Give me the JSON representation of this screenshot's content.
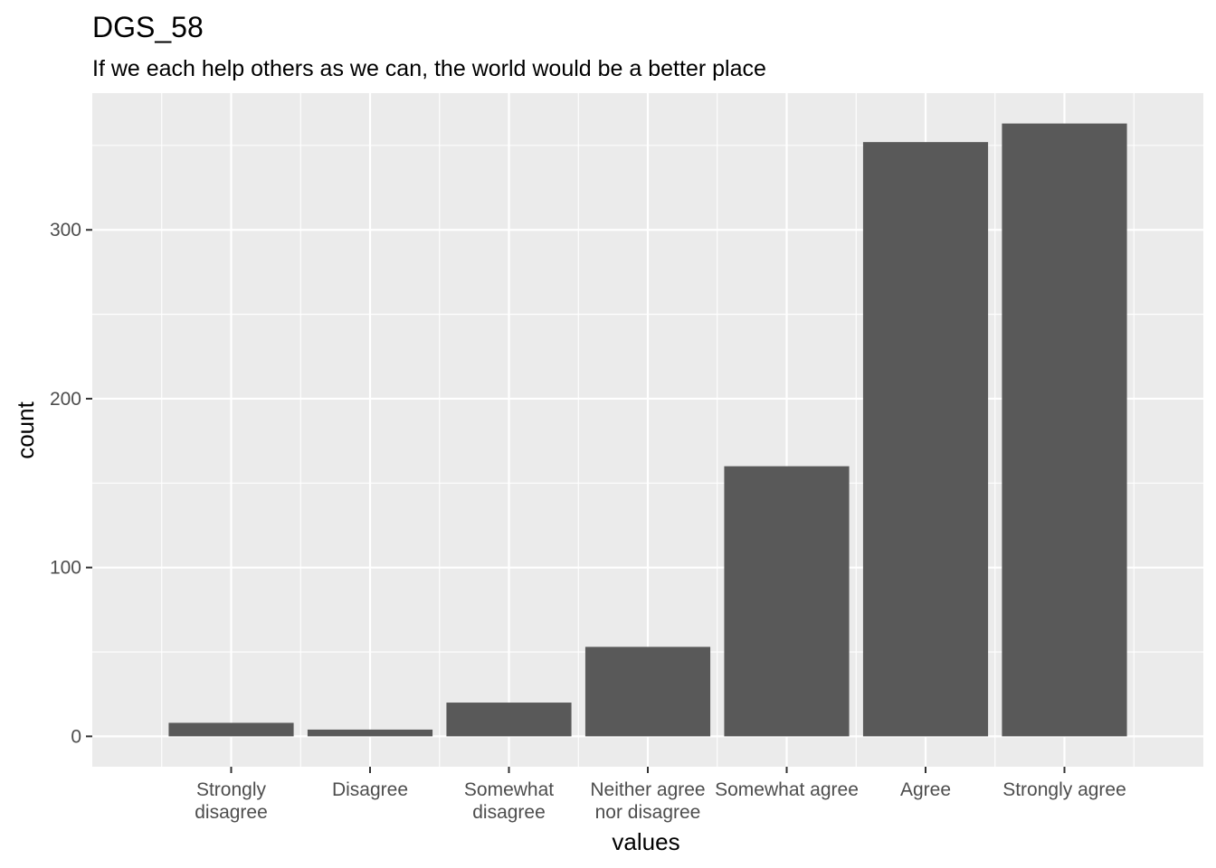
{
  "chart_data": {
    "type": "bar",
    "title": "DGS_58",
    "subtitle": "If we each help others as we can, the world would be a better place",
    "xlabel": "values",
    "ylabel": "count",
    "categories": [
      [
        "Strongly",
        "disagree"
      ],
      [
        "Disagree"
      ],
      [
        "Somewhat",
        "disagree"
      ],
      [
        "Neither agree",
        "nor disagree"
      ],
      [
        "Somewhat agree"
      ],
      [
        "Agree"
      ],
      [
        "Strongly agree"
      ]
    ],
    "values": [
      8,
      4,
      20,
      53,
      160,
      352,
      363
    ],
    "y_ticks": [
      0,
      100,
      200,
      300
    ],
    "ylim": [
      -18,
      381
    ],
    "grid": true,
    "colors": {
      "panel_background": "#ebebeb",
      "grid_line": "#ffffff",
      "bar_fill": "#595959",
      "tick_text": "#4d4d4d",
      "tick_mark": "#333333"
    }
  }
}
